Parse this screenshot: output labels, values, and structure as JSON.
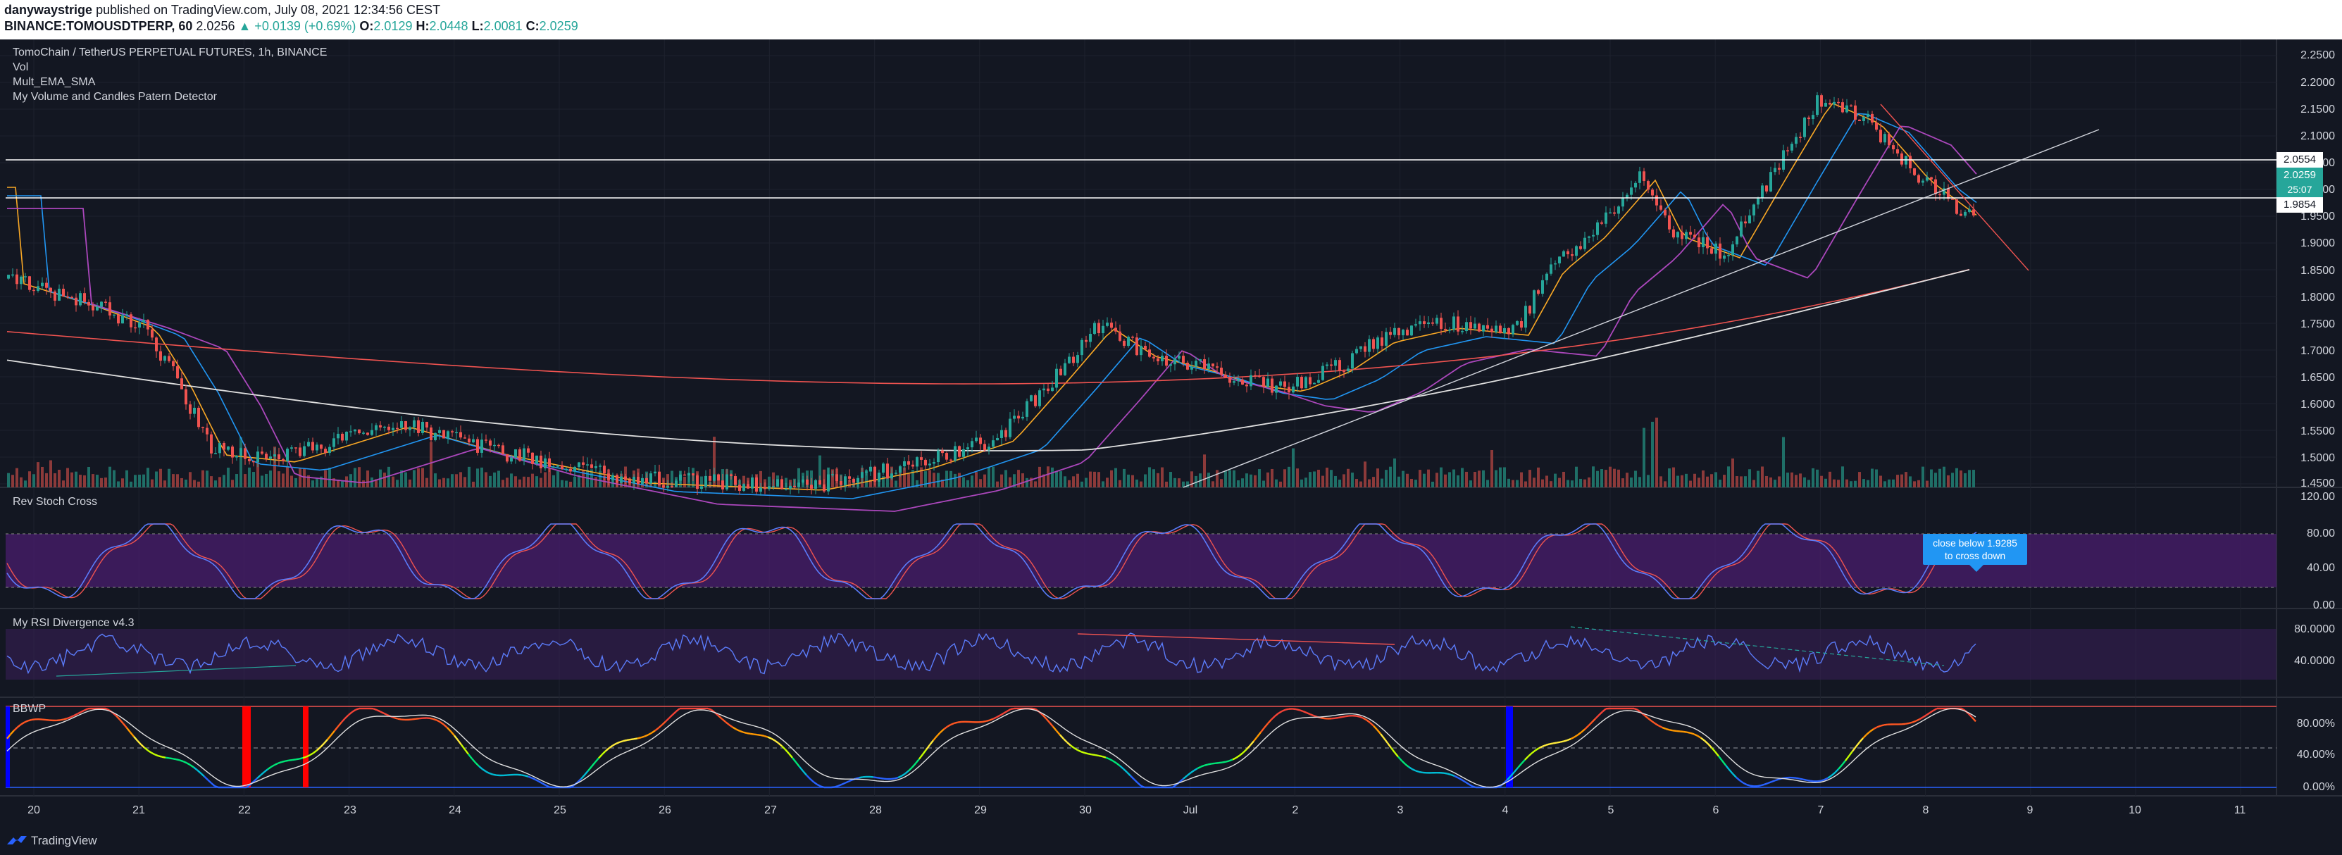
{
  "header": {
    "publisher": "danywaystrige",
    "published_text": "published on TradingView.com, July 08, 2021 12:34:56 CEST",
    "symbol": "BINANCE:TOMOUSDTPERP, 60",
    "last": "2.0256",
    "change": "▲ +0.0139 (+0.69%)",
    "o_label": "O:",
    "o_value": "2.0129",
    "h_label": "H:",
    "h_value": "2.0448",
    "l_label": "L:",
    "l_value": "2.0081",
    "c_label": "C:",
    "c_value": "2.0259"
  },
  "legend": {
    "title": "TomoChain / TetherUS PERPETUAL FUTURES, 1h, BINANCE",
    "vol": "Vol",
    "mult": "Mult_EMA_SMA",
    "pattern": "My Volume and Candles Patern Detector"
  },
  "panes": {
    "stoch": "Rev Stoch Cross",
    "rsi": "My RSI Divergence v4.3",
    "bbwp": "BBWP"
  },
  "price_axis": [
    "2.2500",
    "2.2000",
    "2.1500",
    "2.1000",
    "2.0500",
    "2.0000",
    "1.9500",
    "1.9000",
    "1.8500",
    "1.8000",
    "1.7500",
    "1.7000",
    "1.6500",
    "1.6000",
    "1.5500",
    "1.5000",
    "1.4500"
  ],
  "price_tags": {
    "upper": "2.0554",
    "current": "2.0259",
    "countdown": "25:07",
    "lower": "1.9854"
  },
  "stoch_axis": [
    "120.00",
    "80.00",
    "40.00",
    "0.00"
  ],
  "rsi_axis": [
    "80.0000",
    "40.0000"
  ],
  "bbwp_axis": [
    "80.00%",
    "40.00%",
    "0.00%"
  ],
  "time_axis": [
    "20",
    "21",
    "22",
    "23",
    "24",
    "25",
    "26",
    "27",
    "28",
    "29",
    "30",
    "Jul",
    "2",
    "3",
    "4",
    "5",
    "6",
    "7",
    "8",
    "9",
    "10",
    "11"
  ],
  "callout": {
    "line1": "close below 1.9285",
    "line2": "to cross down"
  },
  "footer": {
    "brand": "TradingView"
  },
  "colors": {
    "bg": "#131722",
    "up": "#26a69a",
    "down": "#ef5350",
    "stoch_band": "#4a1e6e",
    "callout": "#2196f3"
  }
}
